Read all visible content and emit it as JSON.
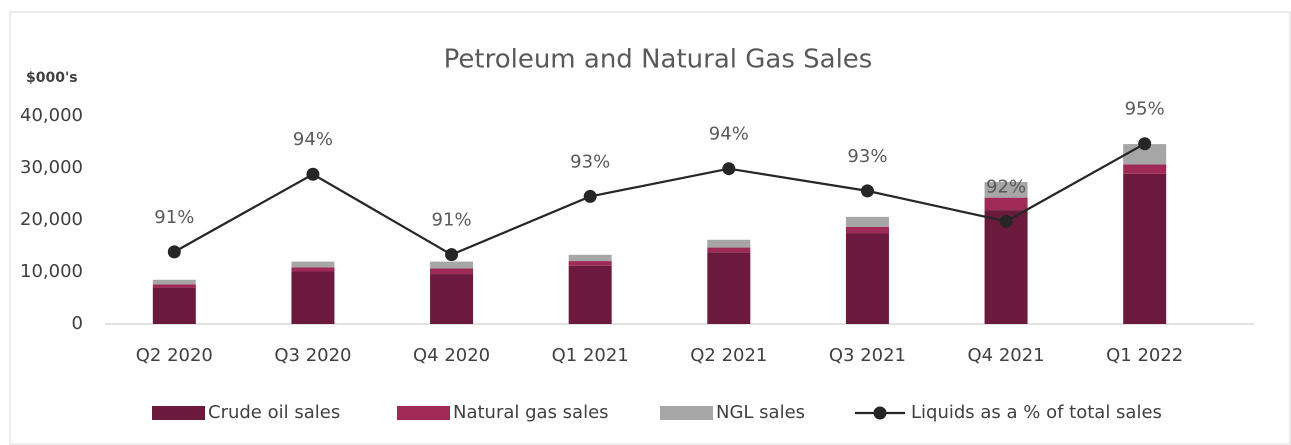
{
  "chart_data": {
    "type": "bar",
    "stacked": true,
    "title": "Petroleum and Natural Gas Sales",
    "y_label": "$000's",
    "categories": [
      "Q2 2020",
      "Q3 2020",
      "Q4 2020",
      "Q1 2021",
      "Q2 2021",
      "Q3 2021",
      "Q4 2021",
      "Q1 2022"
    ],
    "series": [
      {
        "name": "Crude oil sales",
        "color": "#6b1a3e",
        "values": [
          7000,
          10100,
          9600,
          11200,
          13800,
          17400,
          21900,
          28900
        ]
      },
      {
        "name": "Natural gas sales",
        "color": "#9e2a55",
        "values": [
          600,
          800,
          1100,
          900,
          900,
          1300,
          2400,
          1800
        ]
      },
      {
        "name": "NGL sales",
        "color": "#a6a6a6",
        "values": [
          900,
          1100,
          1300,
          1200,
          1500,
          1900,
          3000,
          3900
        ]
      },
      {
        "name": "Liquids as a % of total sales",
        "type": "line",
        "axis": "y2",
        "color": "#262626",
        "values": [
          91.1,
          93.9,
          91.0,
          93.1,
          94.1,
          93.3,
          92.2,
          95.0
        ],
        "value_labels": [
          "91%",
          "94%",
          "91%",
          "93%",
          "94%",
          "93%",
          "92%",
          "95%"
        ]
      }
    ],
    "ylim": [
      0,
      40000
    ],
    "yticks": [
      0,
      {
        "value": 10000,
        "label": "10,000"
      },
      {
        "value": 20000,
        "label": "20,000"
      },
      {
        "value": 30000,
        "label": "30,000"
      },
      {
        "value": 40000,
        "label": "40,000"
      }
    ],
    "y2lim": [
      88.5,
      96
    ],
    "grid": false,
    "legend": "bottom"
  }
}
